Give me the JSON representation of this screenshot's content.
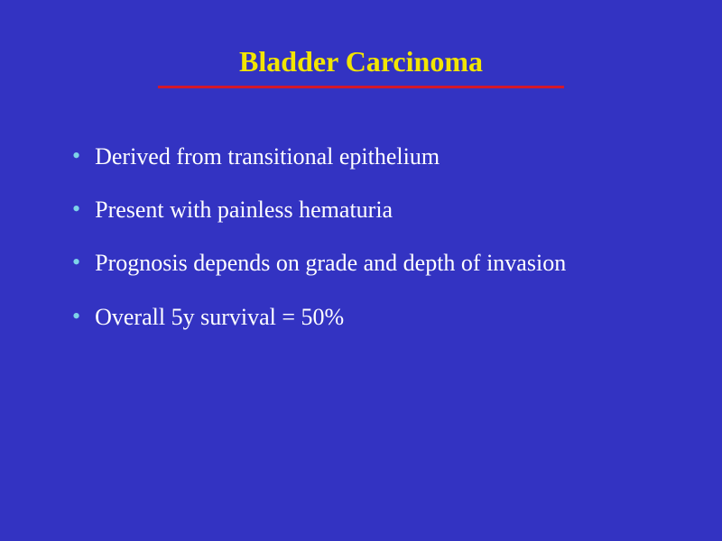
{
  "slide": {
    "title": "Bladder Carcinoma",
    "title_color": "#f2e500",
    "title_fontsize": 32,
    "title_fontweight": "bold",
    "divider_color": "#d4182a",
    "divider_width": 450,
    "divider_height": 3,
    "background_color": "#3333c2",
    "bullet_color": "#7dd3e8",
    "text_color": "#ffffff",
    "text_fontsize": 26,
    "font_family": "Times New Roman",
    "bullets": [
      "Derived from transitional epithelium",
      "Present with painless hematuria",
      "Prognosis depends on grade and depth of invasion",
      "Overall 5y survival = 50%"
    ]
  }
}
